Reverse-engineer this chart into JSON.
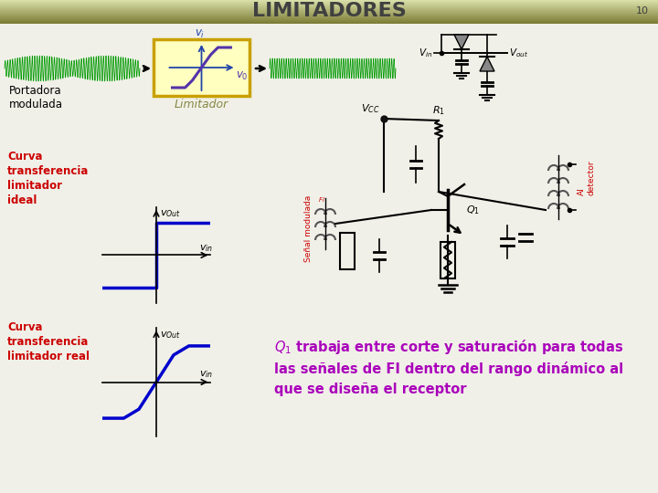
{
  "title": "LIMITADORES",
  "slide_number": "10",
  "bg_color": "#f0f0e8",
  "header_color_top": "#d8dfa8",
  "header_color_bottom": "#787830",
  "title_color": "#404040",
  "title_fontsize": 16,
  "portadora_label": "Portadora\nmodulada",
  "limitador_label": "Limitador",
  "curva1_title": "Curva\ntransferencia\nlimitador\nideal",
  "curva2_title": "Curva\ntransferencia\nlimitador real",
  "bottom_text": "Q₁ trabaja entre corte y saturación para todas\nlas señales de FI dentro del rango dinámico al\nque se diseña el receptor",
  "text_color_purple": "#aa00bb",
  "text_color_red": "#cc0000",
  "blue_color": "#0000cc",
  "green_signal_color": "#009900",
  "yellow_box_color": "#ffffc0",
  "yellow_box_edge": "#c8a000",
  "curve_color": "#5533aa",
  "limitador_text_color": "#888844",
  "signal_modula_color": "#cc0000",
  "vcc_dot_color": "#111111"
}
